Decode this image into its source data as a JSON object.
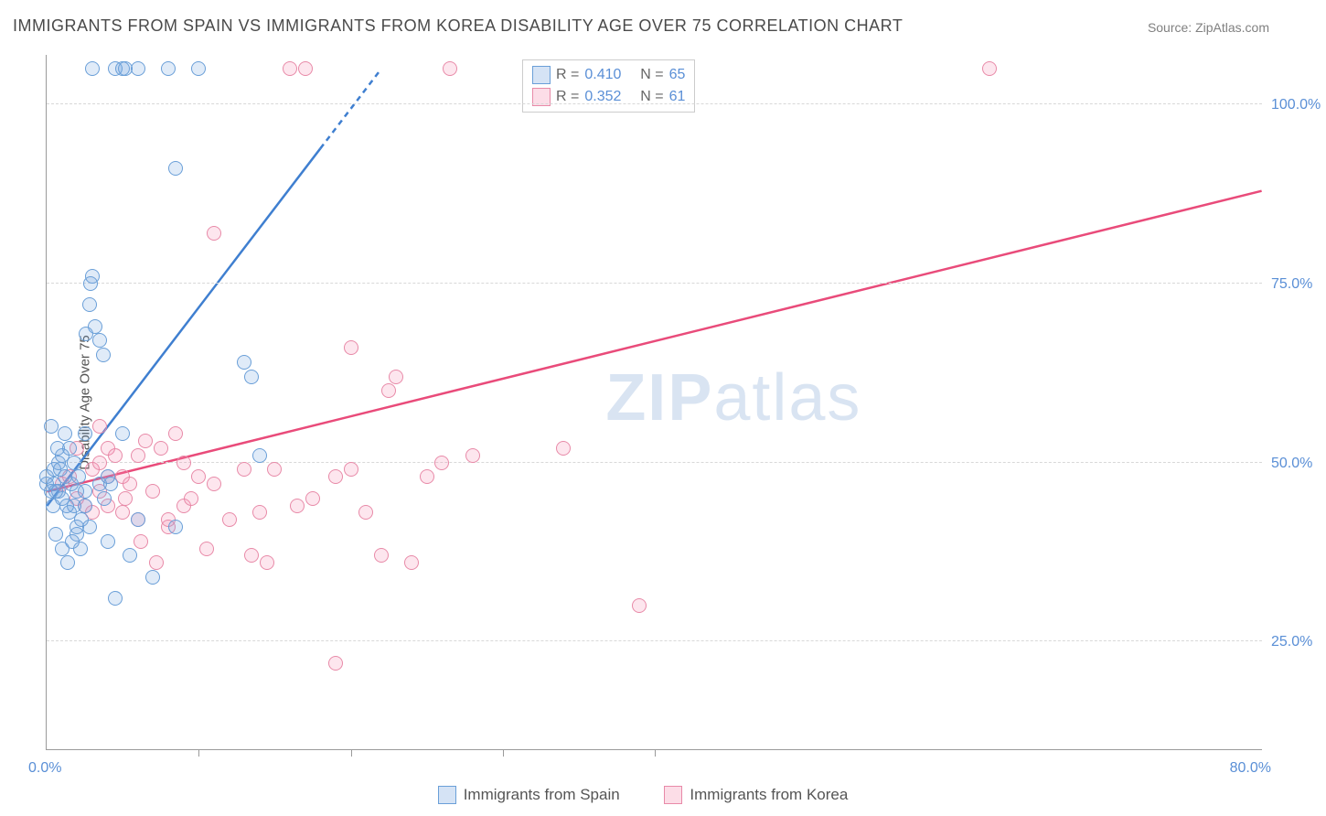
{
  "title": "IMMIGRANTS FROM SPAIN VS IMMIGRANTS FROM KOREA DISABILITY AGE OVER 75 CORRELATION CHART",
  "source": "Source: ZipAtlas.com",
  "ylabel": "Disability Age Over 75",
  "watermark_left": "ZIP",
  "watermark_right": "atlas",
  "chart": {
    "type": "scatter",
    "xlim": [
      0,
      80
    ],
    "ylim": [
      10,
      107
    ],
    "yticks": [
      25.0,
      50.0,
      75.0,
      100.0
    ],
    "ytick_labels": [
      "25.0%",
      "50.0%",
      "75.0%",
      "100.0%"
    ],
    "xticks": [
      10,
      20,
      30,
      40
    ],
    "x_origin_label": "0.0%",
    "x_end_label": "80.0%",
    "grid_color": "#d8d8d8",
    "background_color": "#ffffff",
    "axis_color": "#9a9a9a",
    "tick_font_color": "#5a8fd6",
    "marker_radius": 8,
    "marker_opacity": 0.22
  },
  "series": {
    "spain": {
      "label": "Immigrants from Spain",
      "fill_color": "#73a3de",
      "line_color": "#6a9fd8",
      "R": "0.410",
      "N": "65",
      "trend": {
        "x1": 0,
        "y1": 44,
        "x2": 22,
        "y2": 105,
        "stroke": "#3f7fd0",
        "width": 2.5,
        "dash_tail": true
      },
      "points": [
        [
          0,
          47
        ],
        [
          0,
          48
        ],
        [
          0.3,
          46
        ],
        [
          0.5,
          49
        ],
        [
          0.5,
          47
        ],
        [
          0.8,
          46
        ],
        [
          0.8,
          50
        ],
        [
          1,
          45
        ],
        [
          1,
          51
        ],
        [
          1.2,
          48
        ],
        [
          1.5,
          43
        ],
        [
          1.5,
          52
        ],
        [
          1.8,
          44
        ],
        [
          2,
          46
        ],
        [
          2,
          40
        ],
        [
          2,
          41
        ],
        [
          2.2,
          38
        ],
        [
          2.5,
          54
        ],
        [
          2.5,
          44
        ],
        [
          2.8,
          72
        ],
        [
          3,
          76
        ],
        [
          3.2,
          69
        ],
        [
          3.5,
          67
        ],
        [
          3.7,
          65
        ],
        [
          4,
          48
        ],
        [
          4,
          39
        ],
        [
          4.5,
          31
        ],
        [
          4.5,
          105
        ],
        [
          5,
          105
        ],
        [
          5,
          54
        ],
        [
          5.5,
          37
        ],
        [
          6,
          42
        ],
        [
          6,
          105
        ],
        [
          7,
          34
        ],
        [
          8,
          105
        ],
        [
          8.5,
          91
        ],
        [
          8.5,
          41
        ],
        [
          10,
          105
        ],
        [
          13,
          64
        ],
        [
          13.5,
          62
        ],
        [
          14,
          51
        ],
        [
          3,
          105
        ],
        [
          0.3,
          55
        ],
        [
          1.2,
          54
        ],
        [
          0.6,
          46
        ],
        [
          1.8,
          50
        ],
        [
          2.5,
          46
        ],
        [
          1.6,
          47
        ],
        [
          1.3,
          44
        ],
        [
          0.7,
          52
        ],
        [
          0.9,
          49
        ],
        [
          2.1,
          48
        ],
        [
          2.3,
          42
        ],
        [
          3.8,
          45
        ],
        [
          1.7,
          39
        ],
        [
          2.8,
          41
        ],
        [
          4.2,
          47
        ],
        [
          5.2,
          105
        ],
        [
          3.5,
          47
        ],
        [
          2.6,
          68
        ],
        [
          2.9,
          75
        ],
        [
          0.4,
          44
        ],
        [
          0.6,
          40
        ],
        [
          1.0,
          38
        ],
        [
          1.4,
          36
        ]
      ]
    },
    "korea": {
      "label": "Immigrants from Korea",
      "fill_color": "#f48fb1",
      "line_color": "#e65383",
      "R": "0.352",
      "N": "61",
      "trend": {
        "x1": 0,
        "y1": 46,
        "x2": 80,
        "y2": 88,
        "stroke": "#e94b7a",
        "width": 2.5,
        "dash_tail": false
      },
      "points": [
        [
          1,
          47
        ],
        [
          1.5,
          48
        ],
        [
          2,
          45
        ],
        [
          2,
          52
        ],
        [
          2.5,
          44
        ],
        [
          3,
          43
        ],
        [
          3,
          49
        ],
        [
          3.5,
          50
        ],
        [
          3.5,
          46
        ],
        [
          4,
          52
        ],
        [
          4,
          44
        ],
        [
          4.5,
          51
        ],
        [
          5,
          43
        ],
        [
          5,
          48
        ],
        [
          5.5,
          47
        ],
        [
          6,
          51
        ],
        [
          6,
          42
        ],
        [
          6.5,
          53
        ],
        [
          7,
          46
        ],
        [
          7.5,
          52
        ],
        [
          8,
          41
        ],
        [
          8.5,
          54
        ],
        [
          9,
          50
        ],
        [
          9,
          44
        ],
        [
          10,
          48
        ],
        [
          10.5,
          38
        ],
        [
          11,
          47
        ],
        [
          11,
          82
        ],
        [
          12,
          42
        ],
        [
          13,
          49
        ],
        [
          13.5,
          37
        ],
        [
          14,
          43
        ],
        [
          14.5,
          36
        ],
        [
          15,
          49
        ],
        [
          16,
          105
        ],
        [
          16.5,
          44
        ],
        [
          17,
          105
        ],
        [
          17.5,
          45
        ],
        [
          19,
          22
        ],
        [
          19,
          48
        ],
        [
          20,
          66
        ],
        [
          20,
          49
        ],
        [
          21,
          43
        ],
        [
          22,
          37
        ],
        [
          22.5,
          60
        ],
        [
          23,
          62
        ],
        [
          24,
          36
        ],
        [
          25,
          48
        ],
        [
          26,
          50
        ],
        [
          26.5,
          105
        ],
        [
          28,
          51
        ],
        [
          34,
          52
        ],
        [
          39,
          30
        ],
        [
          62,
          105
        ],
        [
          3.5,
          55
        ],
        [
          4,
          48
        ],
        [
          5.2,
          45
        ],
        [
          6.2,
          39
        ],
        [
          7.2,
          36
        ],
        [
          8,
          42
        ],
        [
          9.5,
          45
        ]
      ]
    }
  },
  "legend_box": {
    "R_label": "R =",
    "N_label": "N ="
  }
}
